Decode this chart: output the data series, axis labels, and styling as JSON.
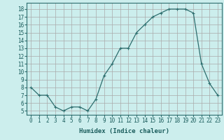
{
  "x": [
    0,
    1,
    2,
    3,
    4,
    5,
    6,
    7,
    8,
    9,
    10,
    11,
    12,
    13,
    14,
    15,
    16,
    17,
    18,
    19,
    20,
    21,
    22,
    23
  ],
  "y": [
    8,
    7,
    7,
    5.5,
    5,
    5.5,
    5.5,
    5,
    6.5,
    9.5,
    11,
    13,
    13,
    15,
    16,
    17,
    17.5,
    18,
    18,
    18,
    17.5,
    11,
    8.5,
    7
  ],
  "line_color": "#2d6e6e",
  "marker": "+",
  "marker_size": 3,
  "bg_color": "#cceeed",
  "grid_color": "#aaaaaa",
  "xlabel": "Humidex (Indice chaleur)",
  "xlim": [
    -0.5,
    23.5
  ],
  "ylim": [
    4.5,
    18.8
  ],
  "yticks": [
    5,
    6,
    7,
    8,
    9,
    10,
    11,
    12,
    13,
    14,
    15,
    16,
    17,
    18
  ],
  "xticks": [
    0,
    1,
    2,
    3,
    4,
    5,
    6,
    7,
    8,
    9,
    10,
    11,
    12,
    13,
    14,
    15,
    16,
    17,
    18,
    19,
    20,
    21,
    22,
    23
  ],
  "xlabel_fontsize": 6.5,
  "tick_fontsize": 5.5,
  "line_width": 0.9,
  "ax_color": "#1a5c5c",
  "spine_color": "#2d6e6e"
}
